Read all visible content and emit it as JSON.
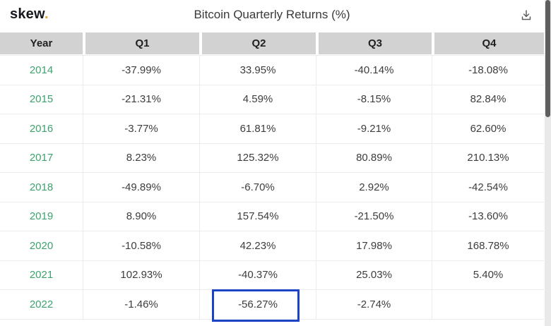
{
  "header": {
    "logo_text": "skew",
    "logo_dot": ".",
    "title": "Bitcoin Quarterly Returns (%)"
  },
  "table": {
    "columns": [
      "Year",
      "Q1",
      "Q2",
      "Q3",
      "Q4"
    ],
    "rows": [
      {
        "year": "2014",
        "values": [
          "-37.99%",
          "33.95%",
          "-40.14%",
          "-18.08%"
        ]
      },
      {
        "year": "2015",
        "values": [
          "-21.31%",
          "4.59%",
          "-8.15%",
          "82.84%"
        ]
      },
      {
        "year": "2016",
        "values": [
          "-3.77%",
          "61.81%",
          "-9.21%",
          "62.60%"
        ]
      },
      {
        "year": "2017",
        "values": [
          "8.23%",
          "125.32%",
          "80.89%",
          "210.13%"
        ]
      },
      {
        "year": "2018",
        "values": [
          "-49.89%",
          "-6.70%",
          "2.92%",
          "-42.54%"
        ]
      },
      {
        "year": "2019",
        "values": [
          "8.90%",
          "157.54%",
          "-21.50%",
          "-13.60%"
        ]
      },
      {
        "year": "2020",
        "values": [
          "-10.58%",
          "42.23%",
          "17.98%",
          "168.78%"
        ]
      },
      {
        "year": "2021",
        "values": [
          "102.93%",
          "-40.37%",
          "25.03%",
          "5.40%"
        ]
      },
      {
        "year": "2022",
        "values": [
          "-1.46%",
          "-56.27%",
          "-2.74%",
          ""
        ]
      }
    ],
    "highlight": {
      "year": "2022",
      "column": "Q2"
    }
  },
  "icons": {
    "download": "download-icon"
  },
  "colors": {
    "year_green": "#3EA26F",
    "highlight_blue": "#1C43C6",
    "header_gray": "#D2D2D2",
    "logo_dot_gold": "#E0A33E"
  }
}
